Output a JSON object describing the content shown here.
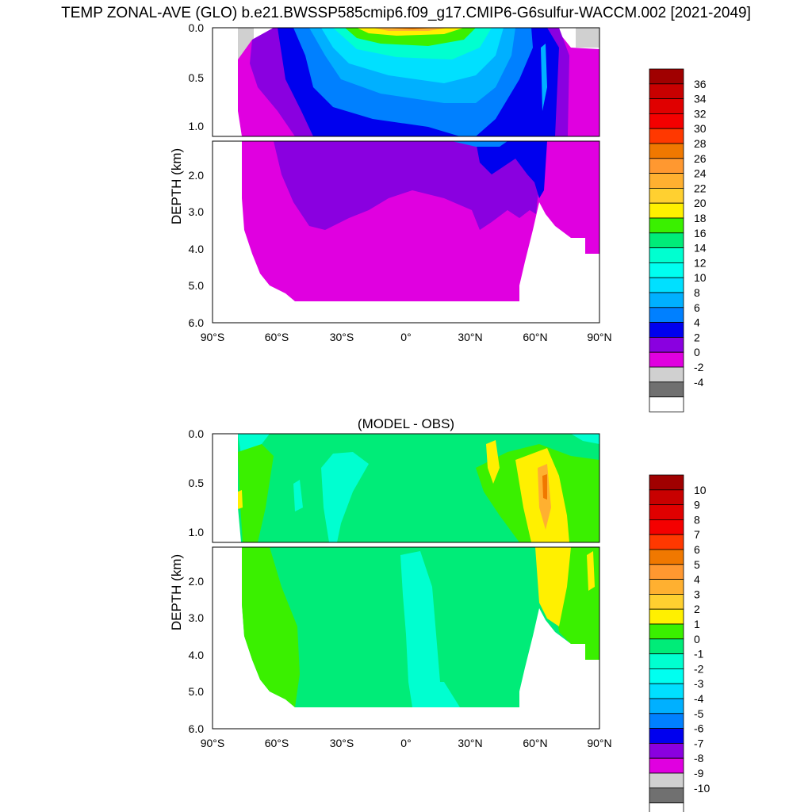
{
  "page_title": "TEMP ZONAL-AVE (GLO) b.e21.BWSSP585cmip6.f09_g17.CMIP6-G6sulfur-WACCM.002 [2021-2049]",
  "chart_data": [
    {
      "type": "contour",
      "title": "",
      "xlabel": "",
      "ylabel": "DEPTH (km)",
      "x_ticks": [
        "90°S",
        "60°S",
        "30°S",
        "0°",
        "30°N",
        "60°N",
        "90°N"
      ],
      "x_values": [
        -90,
        -60,
        -30,
        0,
        30,
        60,
        90
      ],
      "xlim": [
        -90,
        90
      ],
      "y_ticks_upper": [
        "0.0",
        "0.5",
        "1.0"
      ],
      "y_ticks_lower": [
        "2.0",
        "3.0",
        "4.0",
        "5.0",
        "6.0"
      ],
      "ylim": [
        0,
        6
      ],
      "upper_panel_depth_km": [
        0,
        1.1
      ],
      "colorbar_labels": [
        "36",
        "34",
        "32",
        "30",
        "28",
        "26",
        "24",
        "22",
        "20",
        "18",
        "16",
        "14",
        "12",
        "10",
        "8",
        "6",
        "4",
        "2",
        "0",
        "-2",
        "-4"
      ],
      "colorbar_colors": [
        "#A00000",
        "#C80000",
        "#E00000",
        "#F40000",
        "#FF3800",
        "#F07800",
        "#FF9830",
        "#FFB030",
        "#FFD030",
        "#FFF000",
        "#3AF000",
        "#00EC78",
        "#00FFD0",
        "#00FFF0",
        "#00E0FF",
        "#00B0FF",
        "#0080FF",
        "#0000EE",
        "#8A00E0",
        "#E000E0",
        "#D0D0D0",
        "#707070",
        "#FFFFFF"
      ]
    },
    {
      "type": "contour",
      "title": "(MODEL - OBS)",
      "xlabel": "",
      "ylabel": "DEPTH (km)",
      "x_ticks": [
        "90°S",
        "60°S",
        "30°S",
        "0°",
        "30°N",
        "60°N",
        "90°N"
      ],
      "x_values": [
        -90,
        -60,
        -30,
        0,
        30,
        60,
        90
      ],
      "xlim": [
        -90,
        90
      ],
      "y_ticks_upper": [
        "0.0",
        "0.5",
        "1.0"
      ],
      "y_ticks_lower": [
        "2.0",
        "3.0",
        "4.0",
        "5.0",
        "6.0"
      ],
      "ylim": [
        0,
        6
      ],
      "upper_panel_depth_km": [
        0,
        1.1
      ],
      "colorbar_labels": [
        "10",
        "9",
        "8",
        "7",
        "6",
        "5",
        "4",
        "3",
        "2",
        "1",
        "0",
        "-1",
        "-2",
        "-3",
        "-4",
        "-5",
        "-6",
        "-7",
        "-8",
        "-9",
        "-10"
      ],
      "colorbar_colors": [
        "#A00000",
        "#C80000",
        "#E00000",
        "#F40000",
        "#FF3800",
        "#F07800",
        "#FF9830",
        "#FFB030",
        "#FFD030",
        "#FFF000",
        "#3AF000",
        "#00EC78",
        "#00FFD0",
        "#00FFF0",
        "#00E0FF",
        "#00B0FF",
        "#0080FF",
        "#0000EE",
        "#8A00E0",
        "#E000E0",
        "#D0D0D0",
        "#707070",
        "#FFFFFF"
      ]
    }
  ]
}
